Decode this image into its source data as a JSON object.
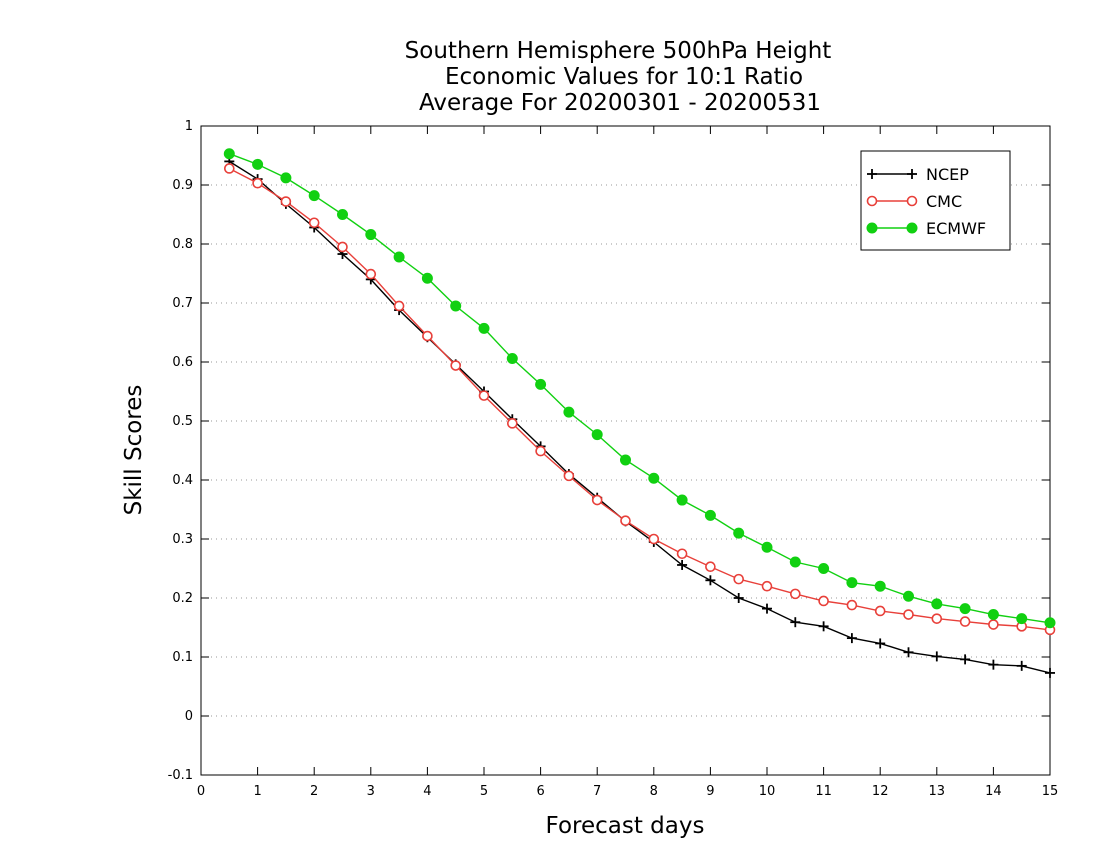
{
  "chart_data": {
    "type": "line",
    "title": [
      "Southern Hemisphere 500hPa Height",
      "Economic Values for 10:1 Ratio",
      "Average For 20200301 - 20200531"
    ],
    "xlabel": "Forecast days",
    "ylabel": "Skill Scores",
    "xlim": [
      0,
      15
    ],
    "ylim": [
      -0.1,
      1
    ],
    "x_ticks": [
      0,
      1,
      2,
      3,
      4,
      5,
      6,
      7,
      8,
      9,
      10,
      11,
      12,
      13,
      14,
      15
    ],
    "x_tick_labels": [
      "0",
      "1",
      "2",
      "3",
      "4",
      "5",
      "6",
      "7",
      "8",
      "9",
      "10",
      "11",
      "12",
      "13",
      "14",
      "15"
    ],
    "y_ticks": [
      -0.1,
      0,
      0.1,
      0.2,
      0.3,
      0.4,
      0.5,
      0.6,
      0.7,
      0.8,
      0.9,
      1
    ],
    "y_tick_labels": [
      "-0.1",
      "0",
      "0.1",
      "0.2",
      "0.3",
      "0.4",
      "0.5",
      "0.6",
      "0.7",
      "0.8",
      "0.9",
      "1"
    ],
    "grid": "horizontal dotted",
    "legend_position": "top-right",
    "x": [
      0.5,
      1,
      1.5,
      2,
      2.5,
      3,
      3.5,
      4,
      4.5,
      5,
      5.5,
      6,
      6.5,
      7,
      7.5,
      8,
      8.5,
      9,
      9.5,
      10,
      10.5,
      11,
      11.5,
      12,
      12.5,
      13,
      13.5,
      14,
      14.5,
      15
    ],
    "series": [
      {
        "name": "NCEP",
        "color": "#000000",
        "marker": "plus",
        "values": [
          0.94,
          0.91,
          0.868,
          0.828,
          0.783,
          0.74,
          0.688,
          0.642,
          0.596,
          0.55,
          0.503,
          0.457,
          0.41,
          0.37,
          0.33,
          0.295,
          0.256,
          0.23,
          0.2,
          0.182,
          0.159,
          0.152,
          0.132,
          0.123,
          0.108,
          0.101,
          0.096,
          0.087,
          0.085,
          0.073
        ]
      },
      {
        "name": "CMC",
        "color": "#e8403a",
        "marker": "open-circle",
        "values": [
          0.928,
          0.903,
          0.872,
          0.836,
          0.795,
          0.749,
          0.695,
          0.644,
          0.594,
          0.543,
          0.496,
          0.449,
          0.407,
          0.366,
          0.331,
          0.3,
          0.275,
          0.253,
          0.232,
          0.22,
          0.207,
          0.195,
          0.188,
          0.178,
          0.172,
          0.165,
          0.16,
          0.155,
          0.152,
          0.146
        ]
      },
      {
        "name": "ECMWF",
        "color": "#11d011",
        "marker": "filled-circle",
        "values": [
          0.953,
          0.935,
          0.912,
          0.882,
          0.85,
          0.816,
          0.778,
          0.742,
          0.695,
          0.657,
          0.606,
          0.562,
          0.515,
          0.477,
          0.434,
          0.403,
          0.366,
          0.34,
          0.31,
          0.286,
          0.261,
          0.25,
          0.226,
          0.22,
          0.203,
          0.19,
          0.182,
          0.172,
          0.165,
          0.158
        ]
      }
    ]
  }
}
